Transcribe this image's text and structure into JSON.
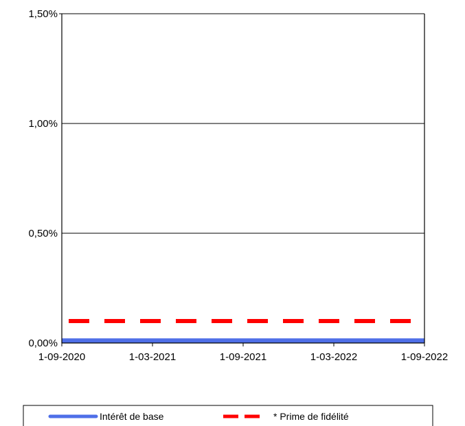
{
  "chart_data": {
    "type": "line",
    "title": "",
    "xlabel": "",
    "ylabel": "",
    "x": [
      "1-09-2020",
      "1-09-2022"
    ],
    "x_ticks": [
      "1-09-2020",
      "1-03-2021",
      "1-09-2021",
      "1-03-2022",
      "1-09-2022"
    ],
    "y_ticks": [
      "0,00%",
      "0,50%",
      "1,00%",
      "1,50%"
    ],
    "y_tick_values": [
      0,
      0.5,
      1.0,
      1.5
    ],
    "ylim": [
      0,
      1.5
    ],
    "y_unit": "%",
    "grid": "horizontal",
    "legend_position": "bottom",
    "series": [
      {
        "name": "Intérêt de base",
        "values": [
          0.01,
          0.01
        ],
        "color": "#4f6fe8",
        "style": "solid"
      },
      {
        "name": "* Prime de fidélité",
        "values": [
          0.1,
          0.1
        ],
        "color": "#ff0000",
        "style": "dashed"
      }
    ]
  }
}
